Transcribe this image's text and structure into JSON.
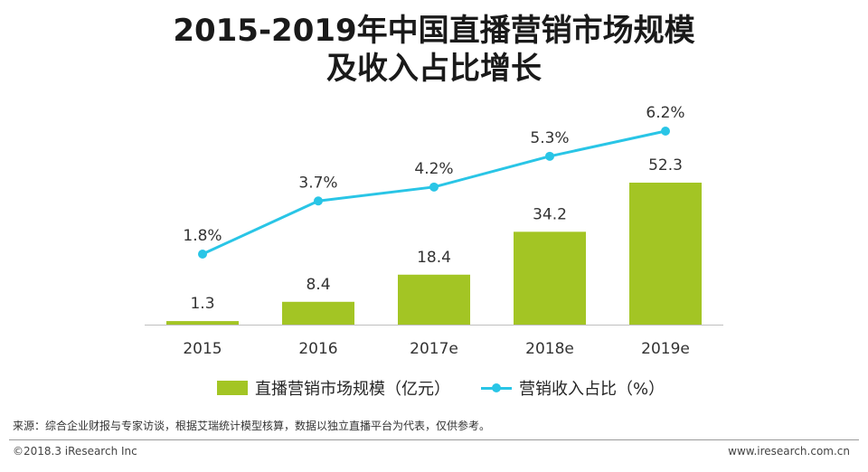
{
  "title_line1": "2015-2019年中国直播营销市场规模",
  "title_line2": "及收入占比增长",
  "chart_data": {
    "type": "bar",
    "categories": [
      "2015",
      "2016",
      "2017e",
      "2018e",
      "2019e"
    ],
    "series": [
      {
        "name": "直播营销市场规模（亿元）",
        "type": "bar",
        "values": [
          1.3,
          8.4,
          18.4,
          34.2,
          52.3
        ],
        "labels": [
          "1.3",
          "8.4",
          "18.4",
          "34.2",
          "52.3"
        ],
        "color": "#a3c524"
      },
      {
        "name": "营销收入占比（%）",
        "type": "line",
        "values": [
          1.8,
          3.7,
          4.2,
          5.3,
          6.2
        ],
        "labels": [
          "1.8%",
          "3.7%",
          "4.2%",
          "5.3%",
          "6.2%"
        ],
        "color": "#29c5e6"
      }
    ],
    "grid": false,
    "legend": "bottom"
  },
  "source": "来源：综合企业财报与专家访谈，根据艾瑞统计模型核算，数据以独立直播平台为代表，仅供参考。",
  "footer_left": "©2018.3 iResearch Inc",
  "footer_right": "www.iresearch.com.cn",
  "axis_color": "#bfbfbf"
}
